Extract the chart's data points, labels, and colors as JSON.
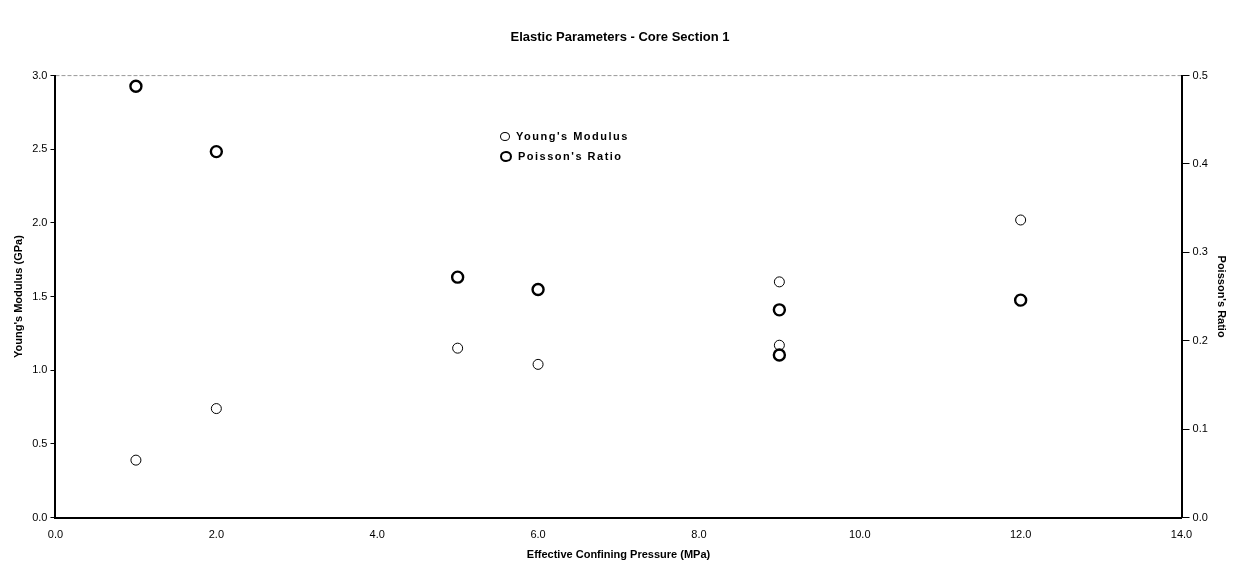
{
  "chart_data": {
    "type": "scatter",
    "title": "Elastic Parameters - Core Section 1",
    "xlabel": "Effective Confining Pressure (MPa)",
    "ylabel": "Young's Modulus (GPa)",
    "y2label": "Poisson's Ratio",
    "series": [
      {
        "name": "Young's Modulus",
        "color": "#000000",
        "x": [
          1,
          2,
          5,
          6,
          9,
          9,
          12
        ],
        "values": [
          0.39,
          0.74,
          1.15,
          1.04,
          1.6,
          1.17,
          2.02
        ]
      },
      {
        "name": "Poisson's Ratio",
        "color": "#000000",
        "axis": "y2",
        "x": [
          1,
          2,
          5,
          6,
          9,
          9,
          12
        ],
        "values": [
          0.488,
          0.414,
          0.272,
          0.258,
          0.235,
          0.184,
          0.246
        ]
      }
    ],
    "xlim": [
      0,
      14
    ],
    "xticks": [
      {
        "value": 0,
        "label": "0.0"
      },
      {
        "value": 2,
        "label": "2.0"
      },
      {
        "value": 4,
        "label": "4.0"
      },
      {
        "value": 6,
        "label": "6.0"
      },
      {
        "value": 8,
        "label": "8.0"
      },
      {
        "value": 10,
        "label": "10.0"
      },
      {
        "value": 12,
        "label": "12.0"
      },
      {
        "value": 14,
        "label": "14.0"
      }
    ],
    "ylim": [
      0,
      3
    ],
    "yticks": [
      {
        "value": 0,
        "label": "0.0"
      },
      {
        "value": 0.5,
        "label": "0.5"
      },
      {
        "value": 1,
        "label": "1.0"
      },
      {
        "value": 1.5,
        "label": "1.5"
      },
      {
        "value": 2,
        "label": "2.0"
      },
      {
        "value": 2.5,
        "label": "2.5"
      },
      {
        "value": 3,
        "label": "3.0"
      }
    ],
    "y2lim": [
      0,
      0.5
    ],
    "y2ticks": [
      {
        "value": 0,
        "label": "0.0"
      },
      {
        "value": 0.1,
        "label": "0.1"
      },
      {
        "value": 0.2,
        "label": "0.2"
      },
      {
        "value": 0.3,
        "label": "0.3"
      },
      {
        "value": 0.4,
        "label": "0.4"
      },
      {
        "value": 0.5,
        "label": "0.5"
      }
    ],
    "marker": "circle",
    "grid": false,
    "legend": "top"
  }
}
